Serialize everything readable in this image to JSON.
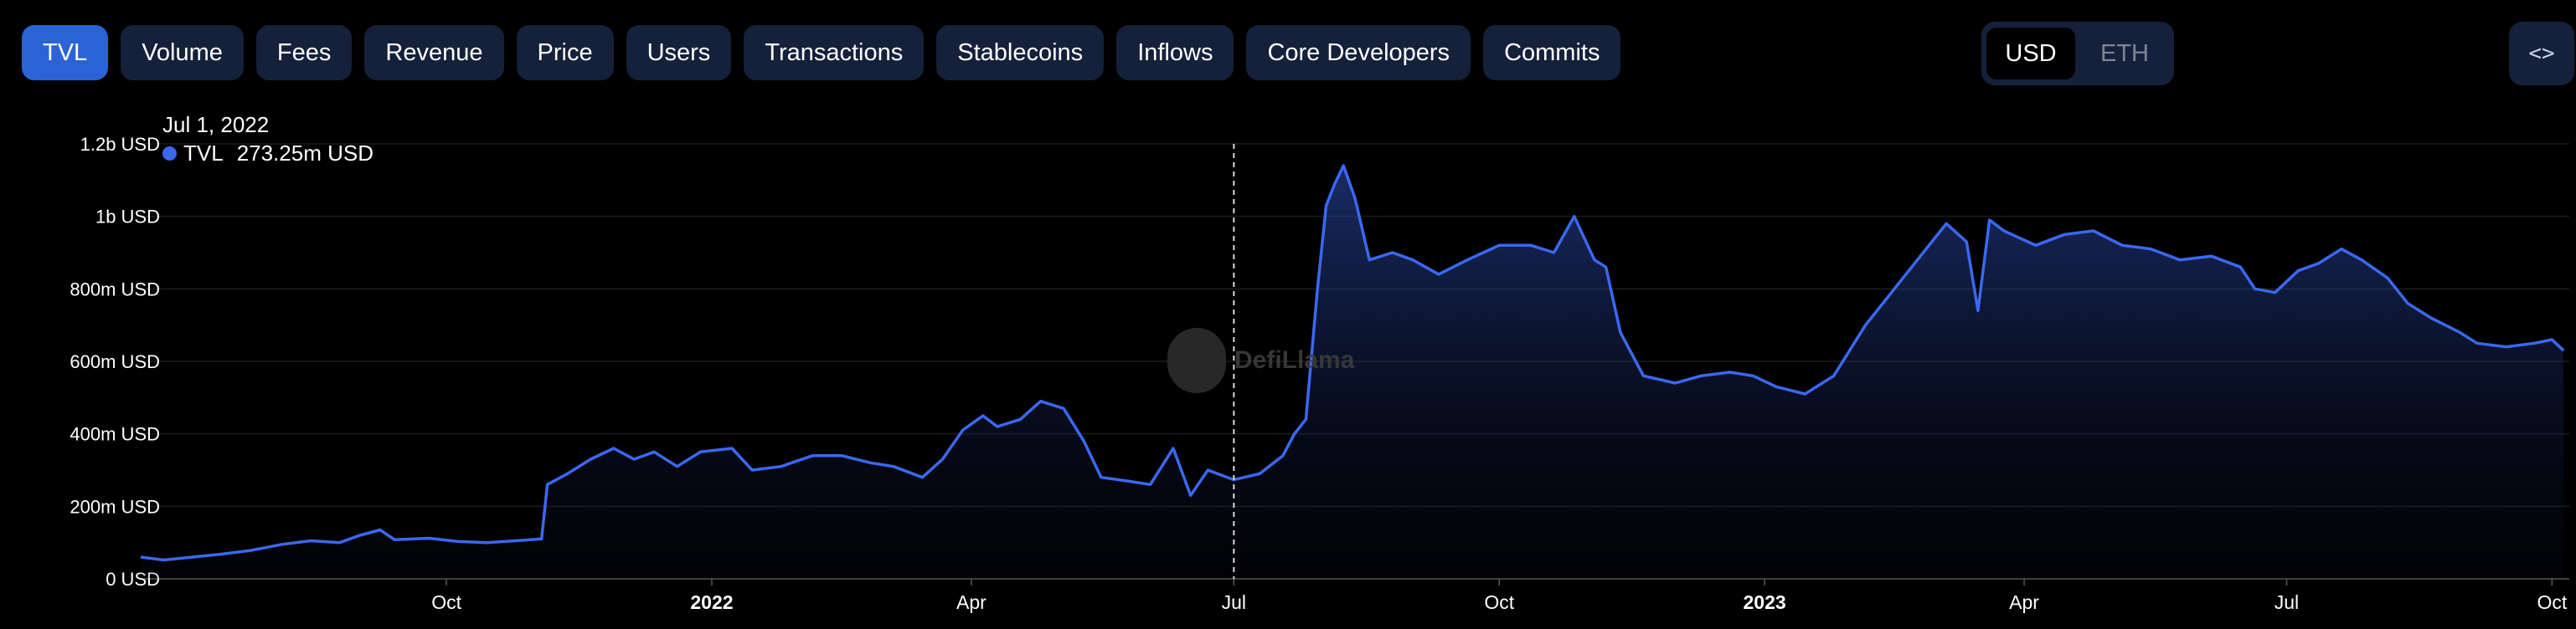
{
  "tabs": [
    {
      "label": "TVL",
      "active": true
    },
    {
      "label": "Volume",
      "active": false
    },
    {
      "label": "Fees",
      "active": false
    },
    {
      "label": "Revenue",
      "active": false
    },
    {
      "label": "Price",
      "active": false
    },
    {
      "label": "Users",
      "active": false
    },
    {
      "label": "Transactions",
      "active": false
    },
    {
      "label": "Stablecoins",
      "active": false
    },
    {
      "label": "Inflows",
      "active": false
    },
    {
      "label": "Core Developers",
      "active": false
    },
    {
      "label": "Commits",
      "active": false
    }
  ],
  "currency": {
    "options": [
      "USD",
      "ETH"
    ],
    "selected": "USD"
  },
  "embed_icon": "code-brackets-icon",
  "embed_label": "<>",
  "watermark": "DefiLlama",
  "tooltip": {
    "date": "Jul 1, 2022",
    "series": "TVL",
    "value": "273.25m USD"
  },
  "colors": {
    "accent": "#3b68f0",
    "tab_bg": "#15213a",
    "tab_active": "#2a63d6",
    "background": "#000000"
  },
  "chart_data": {
    "type": "area",
    "title": "",
    "xlabel": "",
    "ylabel": "",
    "series_name": "TVL",
    "unit": "USD",
    "ylim": [
      0,
      1200000000
    ],
    "yticks": [
      {
        "value": 0,
        "label": "0 USD"
      },
      {
        "value": 200000000,
        "label": "200m USD"
      },
      {
        "value": 400000000,
        "label": "400m USD"
      },
      {
        "value": 600000000,
        "label": "600m USD"
      },
      {
        "value": 800000000,
        "label": "800m USD"
      },
      {
        "value": 1000000000,
        "label": "1b USD"
      },
      {
        "value": 1200000000,
        "label": "1.2b USD"
      }
    ],
    "xlim": [
      "2021-06-17",
      "2023-10-07"
    ],
    "xticks": [
      {
        "date": "2021-10-01",
        "label": "Oct",
        "bold": false
      },
      {
        "date": "2022-01-01",
        "label": "2022",
        "bold": true
      },
      {
        "date": "2022-04-01",
        "label": "Apr",
        "bold": false
      },
      {
        "date": "2022-07-01",
        "label": "Jul",
        "bold": false
      },
      {
        "date": "2022-10-01",
        "label": "Oct",
        "bold": false
      },
      {
        "date": "2023-01-01",
        "label": "2023",
        "bold": true
      },
      {
        "date": "2023-04-01",
        "label": "Apr",
        "bold": false
      },
      {
        "date": "2023-07-01",
        "label": "Jul",
        "bold": false
      },
      {
        "date": "2023-10-01",
        "label": "Oct",
        "bold": false
      }
    ],
    "crosshair_date": "2022-07-01",
    "grid": true,
    "legend": "none",
    "points": [
      [
        "2021-06-17",
        60000000
      ],
      [
        "2021-06-25",
        52000000
      ],
      [
        "2021-07-05",
        60000000
      ],
      [
        "2021-07-15",
        68000000
      ],
      [
        "2021-07-25",
        78000000
      ],
      [
        "2021-08-05",
        95000000
      ],
      [
        "2021-08-15",
        105000000
      ],
      [
        "2021-08-25",
        100000000
      ],
      [
        "2021-09-01",
        120000000
      ],
      [
        "2021-09-08",
        135000000
      ],
      [
        "2021-09-13",
        108000000
      ],
      [
        "2021-09-25",
        112000000
      ],
      [
        "2021-10-05",
        103000000
      ],
      [
        "2021-10-15",
        100000000
      ],
      [
        "2021-10-25",
        105000000
      ],
      [
        "2021-11-03",
        110000000
      ],
      [
        "2021-11-05",
        260000000
      ],
      [
        "2021-11-12",
        290000000
      ],
      [
        "2021-11-20",
        330000000
      ],
      [
        "2021-11-28",
        360000000
      ],
      [
        "2021-12-05",
        330000000
      ],
      [
        "2021-12-12",
        350000000
      ],
      [
        "2021-12-20",
        310000000
      ],
      [
        "2021-12-28",
        350000000
      ],
      [
        "2022-01-08",
        360000000
      ],
      [
        "2022-01-15",
        300000000
      ],
      [
        "2022-01-25",
        310000000
      ],
      [
        "2022-02-05",
        340000000
      ],
      [
        "2022-02-15",
        340000000
      ],
      [
        "2022-02-25",
        320000000
      ],
      [
        "2022-03-05",
        310000000
      ],
      [
        "2022-03-15",
        280000000
      ],
      [
        "2022-03-22",
        330000000
      ],
      [
        "2022-03-29",
        410000000
      ],
      [
        "2022-04-05",
        450000000
      ],
      [
        "2022-04-10",
        420000000
      ],
      [
        "2022-04-18",
        440000000
      ],
      [
        "2022-04-25",
        490000000
      ],
      [
        "2022-05-03",
        470000000
      ],
      [
        "2022-05-10",
        380000000
      ],
      [
        "2022-05-16",
        280000000
      ],
      [
        "2022-05-25",
        270000000
      ],
      [
        "2022-06-02",
        260000000
      ],
      [
        "2022-06-10",
        360000000
      ],
      [
        "2022-06-16",
        230000000
      ],
      [
        "2022-06-22",
        300000000
      ],
      [
        "2022-07-01",
        273250000
      ],
      [
        "2022-07-10",
        290000000
      ],
      [
        "2022-07-18",
        340000000
      ],
      [
        "2022-07-22",
        400000000
      ],
      [
        "2022-07-26",
        440000000
      ],
      [
        "2022-07-30",
        800000000
      ],
      [
        "2022-08-02",
        1030000000
      ],
      [
        "2022-08-05",
        1090000000
      ],
      [
        "2022-08-08",
        1140000000
      ],
      [
        "2022-08-12",
        1050000000
      ],
      [
        "2022-08-17",
        880000000
      ],
      [
        "2022-08-25",
        900000000
      ],
      [
        "2022-09-01",
        880000000
      ],
      [
        "2022-09-10",
        840000000
      ],
      [
        "2022-09-20",
        880000000
      ],
      [
        "2022-10-01",
        920000000
      ],
      [
        "2022-10-12",
        920000000
      ],
      [
        "2022-10-20",
        900000000
      ],
      [
        "2022-10-27",
        1000000000
      ],
      [
        "2022-11-03",
        880000000
      ],
      [
        "2022-11-07",
        860000000
      ],
      [
        "2022-11-12",
        680000000
      ],
      [
        "2022-11-20",
        560000000
      ],
      [
        "2022-12-01",
        540000000
      ],
      [
        "2022-12-10",
        560000000
      ],
      [
        "2022-12-20",
        570000000
      ],
      [
        "2022-12-28",
        560000000
      ],
      [
        "2023-01-05",
        530000000
      ],
      [
        "2023-01-15",
        510000000
      ],
      [
        "2023-01-25",
        560000000
      ],
      [
        "2023-02-05",
        700000000
      ],
      [
        "2023-02-15",
        800000000
      ],
      [
        "2023-02-25",
        900000000
      ],
      [
        "2023-03-05",
        980000000
      ],
      [
        "2023-03-12",
        930000000
      ],
      [
        "2023-03-16",
        740000000
      ],
      [
        "2023-03-20",
        990000000
      ],
      [
        "2023-03-25",
        960000000
      ],
      [
        "2023-04-05",
        920000000
      ],
      [
        "2023-04-15",
        950000000
      ],
      [
        "2023-04-25",
        960000000
      ],
      [
        "2023-05-05",
        920000000
      ],
      [
        "2023-05-15",
        910000000
      ],
      [
        "2023-05-25",
        880000000
      ],
      [
        "2023-06-05",
        890000000
      ],
      [
        "2023-06-15",
        860000000
      ],
      [
        "2023-06-20",
        800000000
      ],
      [
        "2023-06-27",
        790000000
      ],
      [
        "2023-07-05",
        850000000
      ],
      [
        "2023-07-12",
        870000000
      ],
      [
        "2023-07-20",
        910000000
      ],
      [
        "2023-07-27",
        880000000
      ],
      [
        "2023-08-05",
        830000000
      ],
      [
        "2023-08-12",
        760000000
      ],
      [
        "2023-08-20",
        720000000
      ],
      [
        "2023-08-30",
        680000000
      ],
      [
        "2023-09-05",
        650000000
      ],
      [
        "2023-09-15",
        640000000
      ],
      [
        "2023-09-25",
        650000000
      ],
      [
        "2023-10-01",
        660000000
      ],
      [
        "2023-10-05",
        630000000
      ]
    ]
  }
}
